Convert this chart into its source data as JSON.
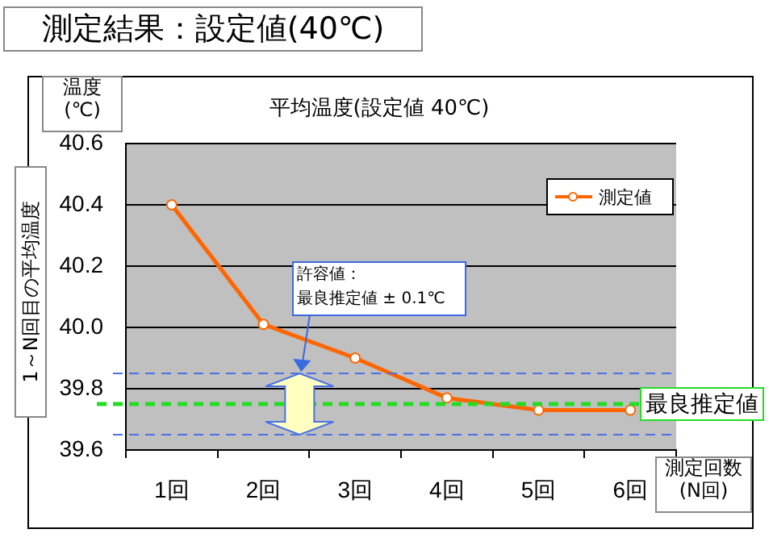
{
  "chart_data": {
    "type": "line",
    "title": "測定結果：設定値(40℃)",
    "subtitle": "平均温度(設定値 40℃)",
    "ylabel": "1～N回目の平均温度",
    "xlabel": "測定回数\n(N回)",
    "categories": [
      "1回",
      "2回",
      "3回",
      "4回",
      "5回",
      "6回"
    ],
    "series": [
      {
        "name": "測定値",
        "color": "#ff6600",
        "values": [
          40.4,
          40.01,
          39.9,
          39.77,
          39.73,
          39.73
        ]
      }
    ],
    "ylim": [
      39.6,
      40.6
    ],
    "yticks": [
      {
        "value": 39.6,
        "label": "39.6"
      },
      {
        "value": 39.8,
        "label": "39.8"
      },
      {
        "value": 40,
        "label": "40.0"
      },
      {
        "value": 40.2,
        "label": "40.2"
      },
      {
        "value": 40.4,
        "label": "40.4"
      },
      {
        "value": 40.6,
        "label": "40.6"
      }
    ],
    "grid": "y",
    "legend": "top right",
    "marker": "circle",
    "line_style": "solid",
    "ref_lines": [
      {
        "axis": "y",
        "value": 39.85,
        "label": null,
        "color": "#4a72e8",
        "line_style": "dashed"
      },
      {
        "axis": "y",
        "value": 39.65,
        "label": null,
        "color": "#4a72e8",
        "line_style": "dashed"
      },
      {
        "axis": "y",
        "value": 39.75,
        "label": "最良推定値",
        "color": "#22dd22",
        "line_style": "dashed"
      }
    ],
    "annotations": [
      "温度\n(℃)",
      "許容値：",
      "最良推定値 ± 0.1℃"
    ]
  }
}
